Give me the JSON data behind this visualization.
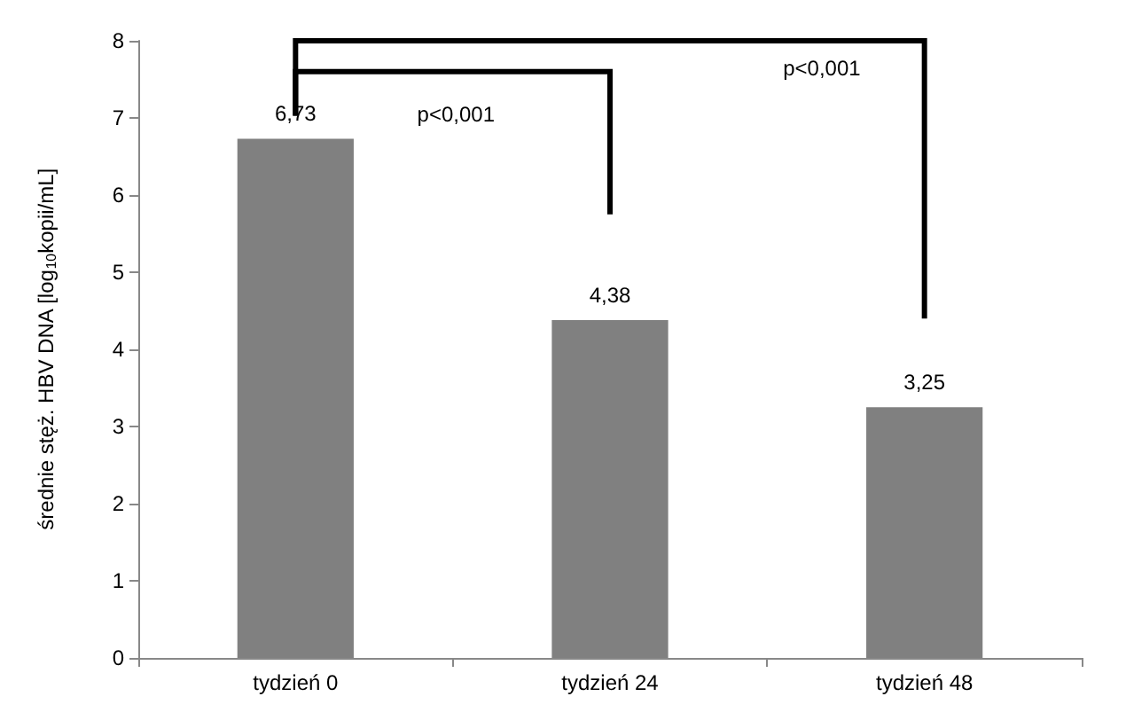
{
  "chart_data": {
    "type": "bar",
    "ylabel": "średnie stęż. HBV DNA [log$_{10}$kopii/mL]",
    "categories": [
      "tydzień 0",
      "tydzień 24",
      "tydzień 48"
    ],
    "values": [
      6.73,
      4.38,
      3.25
    ],
    "color": "#808080",
    "value_labels": [
      "6,73",
      "4,38",
      "3,25"
    ],
    "ylim": [
      0,
      8
    ],
    "yticks": [
      0,
      1,
      2,
      3,
      4,
      5,
      6,
      7,
      8
    ],
    "grid": false,
    "annotations": [
      "p<0,001",
      "p<0,001"
    ]
  }
}
